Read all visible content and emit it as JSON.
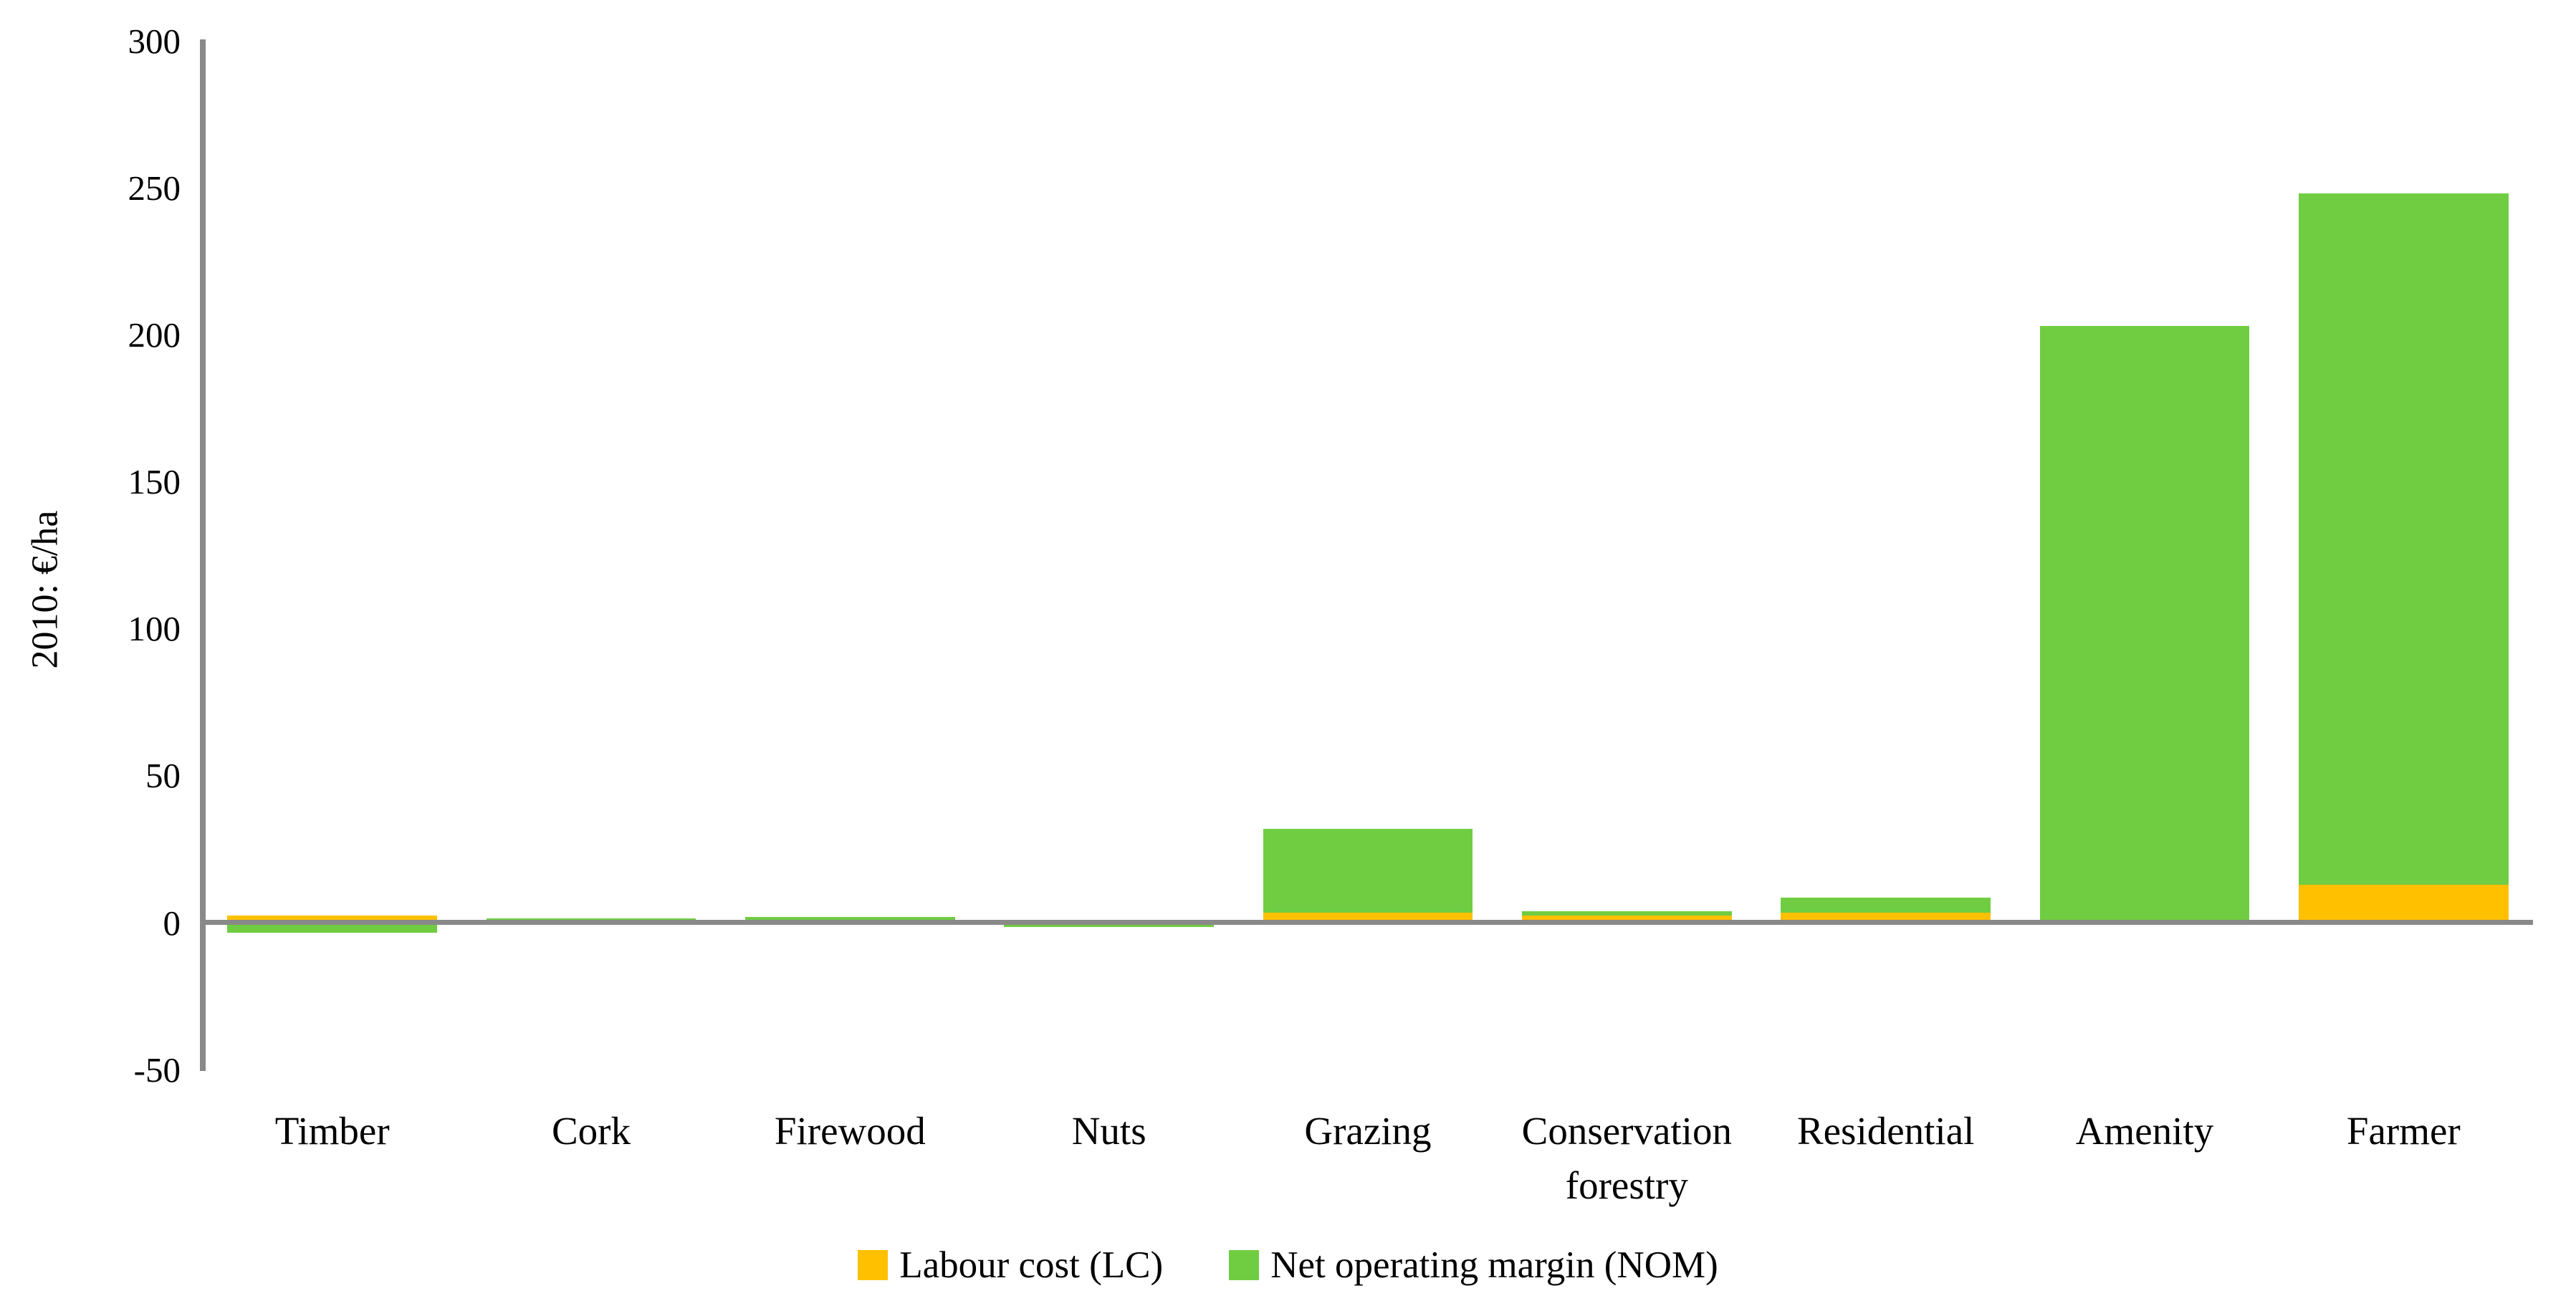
{
  "chart_data": {
    "type": "bar",
    "stacked": true,
    "title": "",
    "ylabel": "2010: €/ha",
    "xlabel": "",
    "categories": [
      "Timber",
      "Cork",
      "Firewood",
      "Nuts",
      "Grazing",
      "Conservation forestry",
      "Residential",
      "Amenity",
      "Farmer"
    ],
    "series": [
      {
        "name": "Labour cost (LC)",
        "key": "lc",
        "color": "#FFC000",
        "values": [
          2.5,
          0,
          0,
          0,
          3.5,
          2.5,
          3.5,
          0,
          13
        ]
      },
      {
        "name": "Net operating margin (NOM)",
        "key": "nom",
        "color": "#70CD42",
        "values": [
          -3.5,
          1.5,
          2,
          -1.5,
          28.5,
          1.5,
          5,
          203,
          235
        ]
      }
    ],
    "ylim": [
      -50,
      300
    ],
    "y_ticks": [
      300,
      250,
      200,
      150,
      100,
      50,
      0,
      -50
    ],
    "grid": false,
    "legend_position": "bottom",
    "axis_color": "#898989",
    "text_color": "#000000",
    "background": "#FFFFFF"
  }
}
